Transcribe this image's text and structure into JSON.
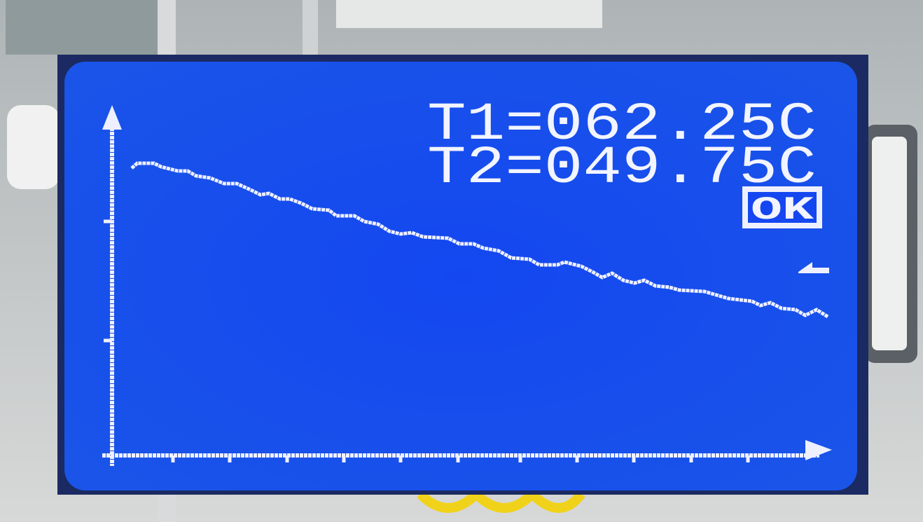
{
  "display": {
    "readings": [
      "T1=062.25C",
      "T2=049.75C"
    ],
    "status": "OK"
  }
}
